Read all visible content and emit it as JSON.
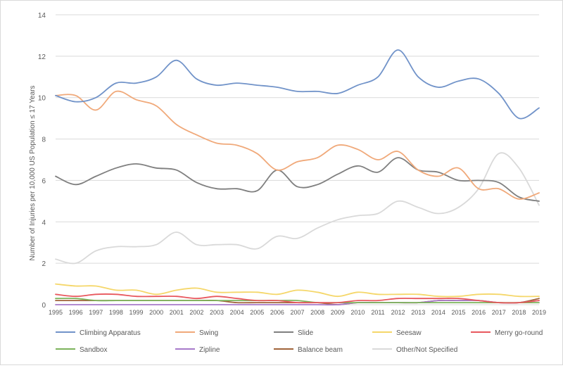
{
  "chart_data": {
    "type": "line",
    "title": "",
    "xlabel": "",
    "ylabel": "Number of Injuries per 10,000 US Population ≤ 17 Years",
    "ylim": [
      0,
      14
    ],
    "yticks": [
      "0",
      "2",
      "4",
      "6",
      "8",
      "10",
      "12",
      "14"
    ],
    "grid": "horizontal",
    "legend_position": "bottom",
    "x": [
      "1995",
      "1996",
      "1997",
      "1998",
      "1999",
      "2000",
      "2001",
      "2002",
      "2003",
      "2004",
      "2005",
      "2006",
      "2007",
      "2008",
      "2009",
      "2010",
      "2011",
      "2012",
      "2013",
      "2014",
      "2015",
      "2016",
      "2017",
      "2018",
      "2019"
    ],
    "series": [
      {
        "name": "Climbing Apparatus",
        "color": "#7193c9",
        "values": [
          10.1,
          9.8,
          10.0,
          10.7,
          10.7,
          11.0,
          11.8,
          10.9,
          10.6,
          10.7,
          10.6,
          10.5,
          10.3,
          10.3,
          10.2,
          10.6,
          11.0,
          12.3,
          11.0,
          10.5,
          10.8,
          10.9,
          10.2,
          9.0,
          9.5
        ]
      },
      {
        "name": "Swing",
        "color": "#f0a97a",
        "values": [
          10.1,
          10.1,
          9.4,
          10.3,
          9.9,
          9.6,
          8.7,
          8.2,
          7.8,
          7.7,
          7.3,
          6.5,
          6.9,
          7.1,
          7.7,
          7.5,
          7.0,
          7.4,
          6.5,
          6.2,
          6.6,
          5.6,
          5.6,
          5.1,
          5.4
        ]
      },
      {
        "name": "Slide",
        "color": "#7f7f7f",
        "values": [
          6.2,
          5.8,
          6.2,
          6.6,
          6.8,
          6.6,
          6.5,
          5.9,
          5.6,
          5.6,
          5.5,
          6.5,
          5.7,
          5.8,
          6.3,
          6.7,
          6.4,
          7.1,
          6.5,
          6.4,
          6.0,
          6.0,
          5.9,
          5.2,
          5.0
        ]
      },
      {
        "name": "Seesaw",
        "color": "#f5d76a",
        "values": [
          1.0,
          0.9,
          0.9,
          0.7,
          0.7,
          0.5,
          0.7,
          0.8,
          0.6,
          0.6,
          0.6,
          0.5,
          0.7,
          0.6,
          0.4,
          0.6,
          0.5,
          0.5,
          0.5,
          0.4,
          0.4,
          0.5,
          0.5,
          0.4,
          0.4
        ]
      },
      {
        "name": "Merry go-round",
        "color": "#e8585e",
        "values": [
          0.5,
          0.4,
          0.5,
          0.5,
          0.4,
          0.4,
          0.4,
          0.3,
          0.4,
          0.3,
          0.2,
          0.2,
          0.1,
          0.1,
          0.1,
          0.2,
          0.2,
          0.3,
          0.3,
          0.3,
          0.3,
          0.2,
          0.1,
          0.1,
          0.2
        ]
      },
      {
        "name": "Sandbox",
        "color": "#7cb35b",
        "values": [
          0.3,
          0.3,
          0.2,
          0.2,
          0.2,
          0.2,
          0.2,
          0.2,
          0.2,
          0.2,
          0.2,
          0.2,
          0.2,
          0.1,
          0.1,
          0.1,
          0.1,
          0.1,
          0.1,
          0.1,
          0.1,
          0.1,
          0.1,
          0.1,
          0.1
        ]
      },
      {
        "name": "Zipline",
        "color": "#a779c9",
        "values": [
          0.0,
          0.0,
          0.0,
          0.0,
          0.0,
          0.0,
          0.0,
          0.0,
          0.0,
          0.0,
          0.0,
          0.0,
          0.0,
          0.0,
          0.0,
          0.1,
          0.1,
          0.1,
          0.1,
          0.2,
          0.2,
          0.2,
          0.1,
          0.1,
          0.2
        ]
      },
      {
        "name": "Balance beam",
        "color": "#a0633a",
        "values": [
          0.2,
          0.2,
          0.2,
          0.2,
          0.2,
          0.2,
          0.2,
          0.2,
          0.2,
          0.1,
          0.1,
          0.1,
          0.1,
          0.1,
          0.0,
          0.1,
          0.1,
          0.1,
          0.1,
          0.2,
          0.2,
          0.2,
          0.1,
          0.1,
          0.3
        ]
      },
      {
        "name": "Other/Not Specified",
        "color": "#d9d9d9",
        "values": [
          2.2,
          2.0,
          2.6,
          2.8,
          2.8,
          2.9,
          3.5,
          2.9,
          2.9,
          2.9,
          2.7,
          3.3,
          3.2,
          3.7,
          4.1,
          4.3,
          4.4,
          5.0,
          4.7,
          4.4,
          4.7,
          5.6,
          7.3,
          6.6,
          4.8
        ]
      }
    ]
  }
}
